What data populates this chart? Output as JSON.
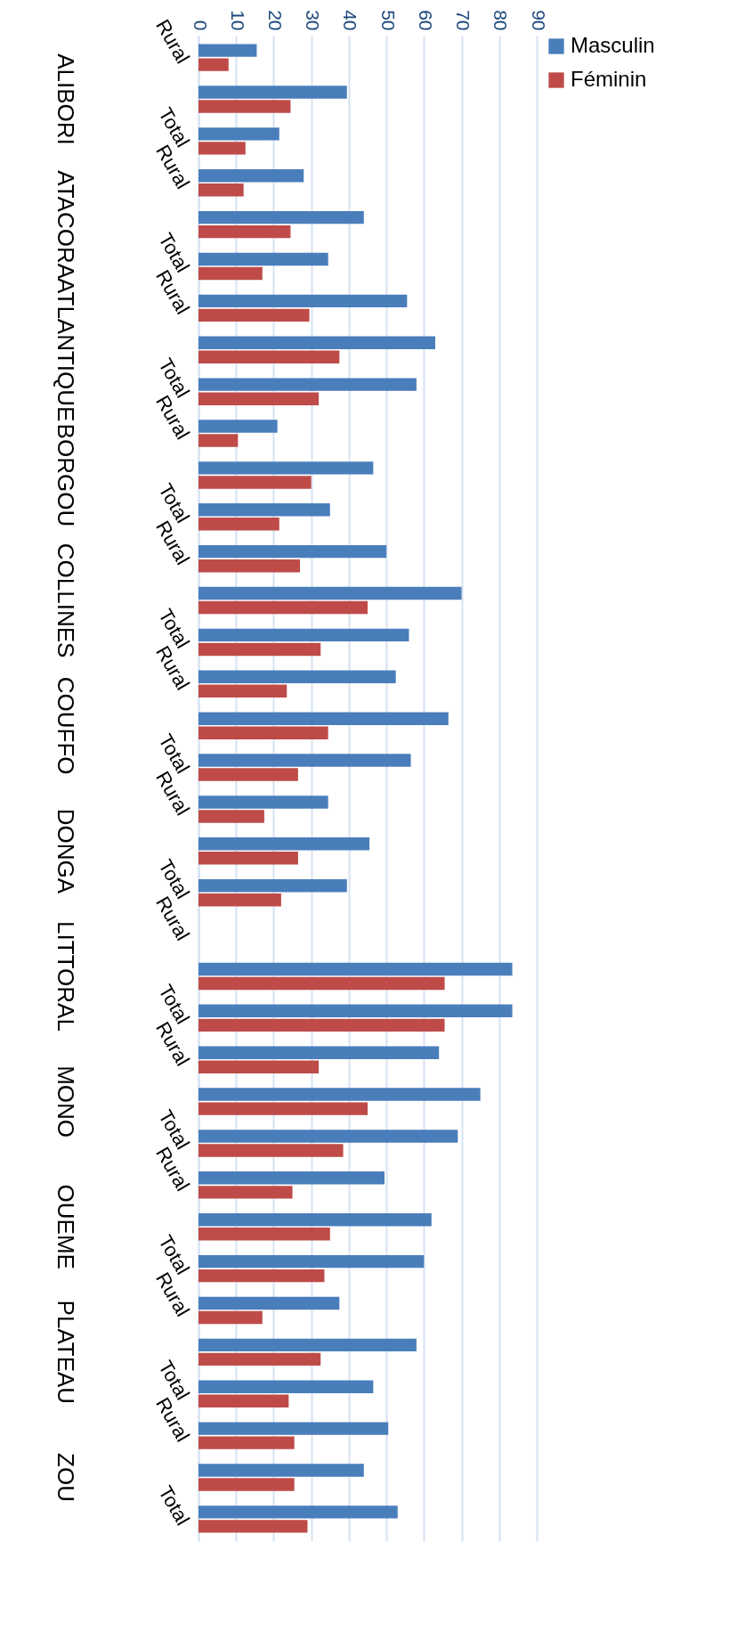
{
  "chart_data": {
    "type": "bar",
    "orientation": "horizontal",
    "categories": [
      "Rural",
      null,
      "Total",
      "Rural",
      null,
      "Total",
      "Rural",
      null,
      "Total",
      "Rural",
      null,
      "Total",
      "Rural",
      null,
      "Total",
      "Rural",
      null,
      "Total",
      "Rural",
      null,
      "Total",
      "Rural",
      null,
      "Total",
      "Rural",
      null,
      "Total",
      "Rural",
      null,
      "Total",
      "Rural",
      null,
      "Total",
      "Rural",
      null,
      "Total"
    ],
    "annotations": [
      "ALIBORI",
      "ATACORA",
      "ATLANTIQUE",
      "BORGOU",
      "COLLINES",
      "COUFFO",
      "DONGA",
      "LITTORAL",
      "MONO",
      "OUEME",
      "PLATEAU",
      "ZOU"
    ],
    "series": [
      {
        "name": "Masculin",
        "color": "#4a7ebb",
        "values": [
          15.5,
          39.5,
          21.5,
          28,
          44,
          34.5,
          55.5,
          63,
          58,
          21,
          46.5,
          35,
          50,
          70,
          56,
          52.5,
          66.5,
          56.5,
          34.5,
          45.5,
          39.5,
          null,
          83.5,
          83.5,
          64,
          75,
          69,
          49.5,
          62,
          60,
          37.5,
          58,
          46.5,
          50.5,
          44,
          53
        ]
      },
      {
        "name": "Féminin",
        "color": "#be4b48",
        "values": [
          8,
          24.5,
          12.5,
          12,
          24.5,
          17,
          29.5,
          37.5,
          32,
          10.5,
          30,
          21.5,
          27,
          45,
          32.5,
          23.5,
          34.5,
          26.5,
          17.5,
          26.5,
          22,
          null,
          65.5,
          65.5,
          32,
          45,
          38.5,
          25,
          35,
          33.5,
          17,
          32.5,
          24,
          25.5,
          25.5,
          29
        ]
      }
    ],
    "xlim": [
      0,
      90
    ],
    "xticks": [
      0,
      10,
      20,
      30,
      40,
      50,
      60,
      70,
      80,
      90
    ],
    "grid": "x",
    "legend": "right"
  }
}
